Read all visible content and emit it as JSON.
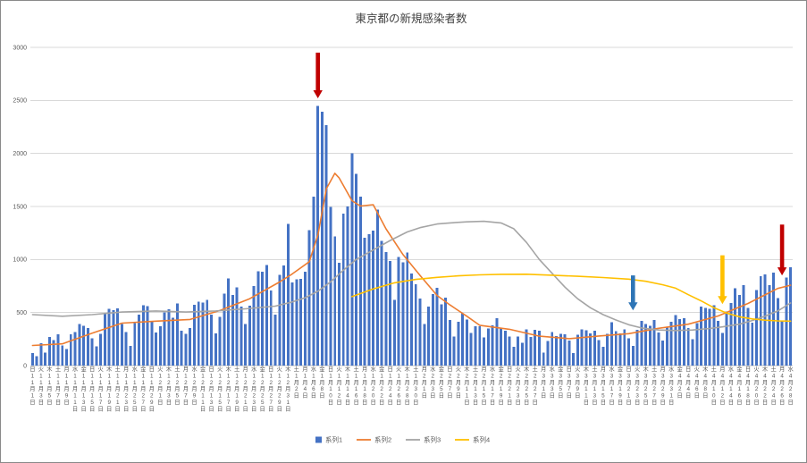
{
  "chart_data": {
    "type": "combo-bar-line",
    "title": "東京都の新規感染者数",
    "ylim": [
      0,
      3000
    ],
    "yticks": [
      0,
      500,
      1000,
      1500,
      2000,
      2500,
      3000
    ],
    "tick_interval": 2,
    "weekday_cycle": [
      "日",
      "月",
      "火",
      "水",
      "木",
      "金",
      "土"
    ],
    "date_suffix": {
      "month": "月",
      "day": "日"
    },
    "months": [
      {
        "month": 11,
        "days": 30
      },
      {
        "month": 12,
        "days": 31
      },
      {
        "month": 1,
        "days": 31
      },
      {
        "month": 2,
        "days": 28
      },
      {
        "month": 3,
        "days": 31
      },
      {
        "month": 4,
        "days": 28
      }
    ],
    "style": {
      "grid_color": "#d9d9d9",
      "axis_color": "#bfbfbf",
      "text_color": "#595959",
      "title_color": "#404040",
      "background": "#ffffff",
      "border": "#8a8a8a"
    },
    "series": [
      {
        "name": "系列1",
        "type": "bar",
        "color": "#4472c4",
        "values": [
          116,
          87,
          209,
          122,
          269,
          242,
          294,
          189,
          157,
          293,
          317,
          393,
          374,
          352,
          255,
          180,
          298,
          493,
          534,
          522,
          539,
          391,
          314,
          186,
          401,
          481,
          570,
          561,
          418,
          311,
          372,
          500,
          533,
          449,
          584,
          327,
          299,
          352,
          572,
          602,
          595,
          621,
          480,
          305,
          460,
          678,
          822,
          664,
          736,
          556,
          392,
          563,
          748,
          888,
          884,
          949,
          708,
          481,
          856,
          944,
          1337,
          783,
          814,
          816,
          884,
          1278,
          1591,
          2447,
          2392,
          2268,
          1494,
          1219,
          970,
          1433,
          1502,
          2001,
          1809,
          1592,
          1204,
          1240,
          1274,
          1471,
          1175,
          1070,
          986,
          618,
          1026,
          973,
          1064,
          868,
          769,
          633,
          393,
          556,
          676,
          734,
          577,
          639,
          429,
          276,
          412,
          491,
          434,
          307,
          369,
          371,
          266,
          350,
          378,
          445,
          353,
          327,
          272,
          178,
          275,
          213,
          340,
          270,
          337,
          329,
          121,
          232,
          316,
          279,
          301,
          293,
          237,
          116,
          290,
          340,
          335,
          304,
          330,
          239,
          175,
          300,
          409,
          323,
          303,
          342,
          256,
          187,
          337,
          420,
          394,
          376,
          430,
          313,
          234,
          364,
          414,
          475,
          440,
          446,
          355,
          249,
          399,
          555,
          545,
          537,
          570,
          421,
          306,
          510,
          591,
          729,
          667,
          759,
          543,
          405,
          711,
          843,
          861,
          759,
          876,
          635,
          425,
          828,
          925
        ]
      },
      {
        "name": "系列2",
        "type": "line",
        "color": "#ed7d31",
        "points": [
          [
            0,
            190
          ],
          [
            7,
            205
          ],
          [
            14,
            306
          ],
          [
            21,
            400
          ],
          [
            29,
            419
          ],
          [
            37,
            435
          ],
          [
            44,
            519
          ],
          [
            51,
            630
          ],
          [
            58,
            788
          ],
          [
            61,
            865
          ],
          [
            65,
            979
          ],
          [
            67,
            1230
          ],
          [
            69,
            1668
          ],
          [
            71,
            1813
          ],
          [
            72,
            1769
          ],
          [
            75,
            1555
          ],
          [
            77,
            1504
          ],
          [
            80,
            1517
          ],
          [
            83,
            1289
          ],
          [
            87,
            1046
          ],
          [
            91,
            850
          ],
          [
            95,
            661
          ],
          [
            98,
            572
          ],
          [
            102,
            465
          ],
          [
            105,
            380
          ],
          [
            112,
            342
          ],
          [
            119,
            277
          ],
          [
            126,
            254
          ],
          [
            133,
            279
          ],
          [
            140,
            301
          ],
          [
            147,
            351
          ],
          [
            154,
            390
          ],
          [
            161,
            468
          ],
          [
            168,
            586
          ],
          [
            175,
            727
          ],
          [
            178,
            758
          ]
        ]
      },
      {
        "name": "系列3",
        "type": "line",
        "color": "#a5a5a5",
        "points": [
          [
            0,
            480
          ],
          [
            7,
            465
          ],
          [
            14,
            480
          ],
          [
            21,
            505
          ],
          [
            29,
            515
          ],
          [
            36,
            505
          ],
          [
            43,
            515
          ],
          [
            50,
            535
          ],
          [
            57,
            560
          ],
          [
            61,
            600
          ],
          [
            64,
            640
          ],
          [
            67,
            700
          ],
          [
            70,
            790
          ],
          [
            73,
            900
          ],
          [
            76,
            1000
          ],
          [
            80,
            1090
          ],
          [
            84,
            1180
          ],
          [
            88,
            1260
          ],
          [
            91,
            1300
          ],
          [
            95,
            1335
          ],
          [
            98,
            1345
          ],
          [
            102,
            1355
          ],
          [
            106,
            1360
          ],
          [
            110,
            1345
          ],
          [
            113,
            1290
          ],
          [
            116,
            1160
          ],
          [
            119,
            1000
          ],
          [
            122,
            870
          ],
          [
            125,
            740
          ],
          [
            128,
            630
          ],
          [
            131,
            545
          ],
          [
            134,
            480
          ],
          [
            137,
            430
          ],
          [
            140,
            385
          ],
          [
            143,
            355
          ],
          [
            147,
            335
          ],
          [
            151,
            330
          ],
          [
            155,
            335
          ],
          [
            159,
            350
          ],
          [
            162,
            365
          ],
          [
            166,
            390
          ],
          [
            169,
            425
          ],
          [
            172,
            465
          ],
          [
            175,
            515
          ],
          [
            178,
            590
          ]
        ]
      },
      {
        "name": "系列4",
        "type": "line",
        "color": "#ffc000",
        "points": [
          [
            75,
            650
          ],
          [
            80,
            722
          ],
          [
            85,
            780
          ],
          [
            90,
            812
          ],
          [
            95,
            832
          ],
          [
            100,
            846
          ],
          [
            105,
            855
          ],
          [
            110,
            860
          ],
          [
            116,
            861
          ],
          [
            122,
            852
          ],
          [
            128,
            842
          ],
          [
            134,
            830
          ],
          [
            140,
            815
          ],
          [
            144,
            795
          ],
          [
            148,
            762
          ],
          [
            151,
            730
          ],
          [
            154,
            668
          ],
          [
            157,
            610
          ],
          [
            160,
            545
          ],
          [
            163,
            495
          ],
          [
            166,
            460
          ],
          [
            169,
            440
          ],
          [
            172,
            428
          ],
          [
            175,
            421
          ],
          [
            178,
            419
          ]
        ]
      }
    ],
    "annotations": [
      {
        "name": "red-arrow-peak",
        "color": "#c00000",
        "day_index": 67,
        "from_value": 2950,
        "to_value": 2520
      },
      {
        "name": "blue-arrow",
        "color": "#2e75b6",
        "day_index": 141,
        "from_value": 850,
        "to_value": 520
      },
      {
        "name": "yellow-arrow",
        "color": "#ffc000",
        "day_index": 162,
        "from_value": 1040,
        "to_value": 580
      },
      {
        "name": "red-arrow-right",
        "color": "#c00000",
        "day_index": 176,
        "from_value": 1330,
        "to_value": 850
      }
    ]
  }
}
